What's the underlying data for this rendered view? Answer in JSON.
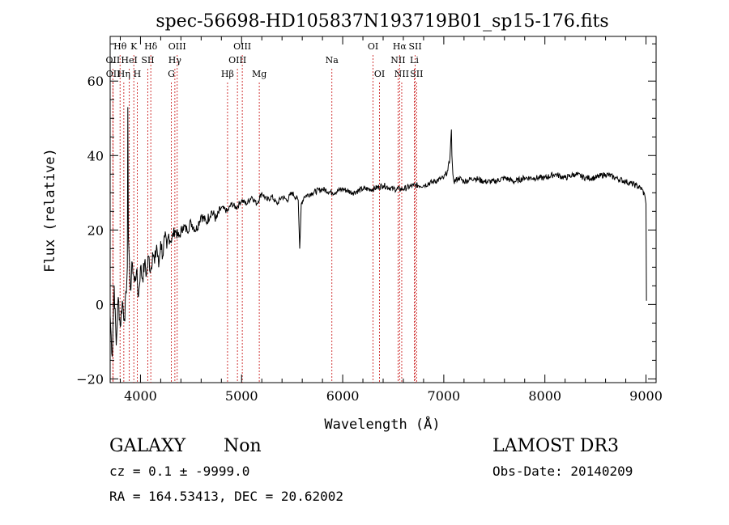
{
  "chart_data": {
    "type": "line",
    "title": "spec-56698-HD105837N193719B01_sp15-176.fits",
    "xlabel": "Wavelength (Å)",
    "ylabel": "Flux (relative)",
    "xlim": [
      3700,
      9100
    ],
    "ylim": [
      -21,
      72
    ],
    "xticks": [
      4000,
      5000,
      6000,
      7000,
      8000,
      9000
    ],
    "yticks": [
      -20,
      0,
      20,
      40,
      60
    ],
    "series": [
      {
        "name": "spectrum",
        "x": [
          3700,
          3720,
          3740,
          3760,
          3780,
          3800,
          3820,
          3840,
          3860,
          3870,
          3875,
          3880,
          3890,
          3900,
          3920,
          3940,
          3960,
          3980,
          4000,
          4020,
          4040,
          4060,
          4080,
          4100,
          4120,
          4140,
          4160,
          4180,
          4200,
          4220,
          4240,
          4260,
          4280,
          4300,
          4340,
          4380,
          4420,
          4460,
          4500,
          4550,
          4600,
          4650,
          4700,
          4750,
          4800,
          4860,
          4900,
          4950,
          5000,
          5050,
          5100,
          5150,
          5200,
          5250,
          5300,
          5350,
          5400,
          5450,
          5500,
          5560,
          5575,
          5590,
          5620,
          5700,
          5800,
          5900,
          6000,
          6100,
          6200,
          6300,
          6400,
          6500,
          6600,
          6700,
          6800,
          6900,
          7000,
          7040,
          7060,
          7075,
          7080,
          7090,
          7100,
          7150,
          7200,
          7300,
          7400,
          7500,
          7600,
          7700,
          7800,
          7900,
          8000,
          8100,
          8200,
          8300,
          8400,
          8500,
          8600,
          8700,
          8800,
          8900,
          8960,
          8990,
          9000,
          9005
        ],
        "y": [
          -3,
          -14,
          5,
          -11,
          2,
          -6,
          1,
          -4,
          3,
          10,
          53,
          18,
          12,
          4,
          11,
          6,
          9,
          2,
          10,
          7,
          11,
          8,
          13,
          9,
          14,
          11,
          16,
          10,
          17,
          13,
          18,
          15,
          19,
          17,
          20,
          18,
          21,
          20,
          22,
          20,
          24,
          22,
          25,
          23,
          26,
          25,
          27,
          26,
          28,
          27,
          29,
          27,
          30,
          28,
          29,
          27,
          29,
          28,
          30,
          28,
          15,
          27,
          29,
          30,
          31,
          30,
          31,
          30,
          31,
          31,
          32,
          31,
          31,
          32,
          32,
          33,
          34,
          36,
          39,
          47,
          40,
          35,
          33,
          34,
          33,
          34,
          33,
          33,
          34,
          33,
          34,
          34,
          34,
          35,
          34,
          35,
          34,
          34,
          35,
          34,
          33,
          32,
          31,
          29,
          27,
          1
        ]
      }
    ],
    "line_markers": [
      {
        "label": "OII",
        "wavelength": 3727,
        "row": 2
      },
      {
        "label": "OII",
        "wavelength": 3729,
        "row": 3
      },
      {
        "label": "Hθ",
        "wavelength": 3798,
        "row": 1
      },
      {
        "label": "Hη",
        "wavelength": 3835,
        "row": 3
      },
      {
        "label": "HeI",
        "wavelength": 3889,
        "row": 2
      },
      {
        "label": "K",
        "wavelength": 3934,
        "row": 1
      },
      {
        "label": "H",
        "wavelength": 3968,
        "row": 3
      },
      {
        "label": "Hδ",
        "wavelength": 4102,
        "row": 1
      },
      {
        "label": "SII",
        "wavelength": 4072,
        "row": 2
      },
      {
        "label": "OIII",
        "wavelength": 4363,
        "row": 1
      },
      {
        "label": "Hγ",
        "wavelength": 4340,
        "row": 2
      },
      {
        "label": "G",
        "wavelength": 4305,
        "row": 3
      },
      {
        "label": "Hβ",
        "wavelength": 4861,
        "row": 3
      },
      {
        "label": "OIII",
        "wavelength": 5007,
        "row": 1
      },
      {
        "label": "OIII",
        "wavelength": 4959,
        "row": 2
      },
      {
        "label": "Mg",
        "wavelength": 5175,
        "row": 3
      },
      {
        "label": "Na",
        "wavelength": 5893,
        "row": 2
      },
      {
        "label": "OI",
        "wavelength": 6300,
        "row": 1
      },
      {
        "label": "OI",
        "wavelength": 6364,
        "row": 3
      },
      {
        "label": "Hα",
        "wavelength": 6563,
        "row": 1
      },
      {
        "label": "NII",
        "wavelength": 6548,
        "row": 2
      },
      {
        "label": "NII",
        "wavelength": 6584,
        "row": 3
      },
      {
        "label": "SII",
        "wavelength": 6717,
        "row": 1
      },
      {
        "label": "Li",
        "wavelength": 6708,
        "row": 2
      },
      {
        "label": "SII",
        "wavelength": 6731,
        "row": 3
      }
    ]
  },
  "info": {
    "object_class": "GALAXY",
    "subclass": "Non",
    "survey": "LAMOST DR3",
    "redshift": "cz = 0.1 ± -9999.0",
    "obs_date": "Obs-Date: 20140209",
    "coords": "RA = 164.53413, DEC =  20.62002"
  }
}
